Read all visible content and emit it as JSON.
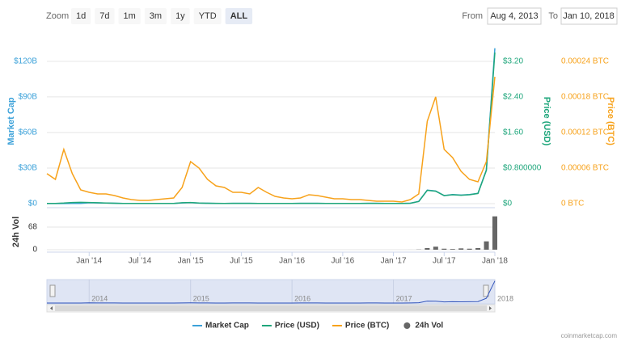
{
  "range_selector": {
    "label": "Zoom",
    "buttons": [
      "1d",
      "7d",
      "1m",
      "3m",
      "1y",
      "YTD",
      "ALL"
    ],
    "selected": 6,
    "from_label": "From",
    "from": "Aug 4, 2013",
    "to_label": "To",
    "to": "Jan 10, 2018"
  },
  "chart_data": {
    "type": "line",
    "x": [
      "2013-08",
      "2013-09",
      "2013-10",
      "2013-11",
      "2013-12",
      "2014-01",
      "2014-02",
      "2014-03",
      "2014-04",
      "2014-05",
      "2014-06",
      "2014-07",
      "2014-08",
      "2014-09",
      "2014-10",
      "2014-11",
      "2014-12",
      "2015-01",
      "2015-02",
      "2015-03",
      "2015-04",
      "2015-05",
      "2015-06",
      "2015-07",
      "2015-08",
      "2015-09",
      "2015-10",
      "2015-11",
      "2015-12",
      "2016-01",
      "2016-02",
      "2016-03",
      "2016-04",
      "2016-05",
      "2016-06",
      "2016-07",
      "2016-08",
      "2016-09",
      "2016-10",
      "2016-11",
      "2016-12",
      "2017-01",
      "2017-02",
      "2017-03",
      "2017-04",
      "2017-05",
      "2017-06",
      "2017-07",
      "2017-08",
      "2017-09",
      "2017-10",
      "2017-11",
      "2017-12",
      "2018-01"
    ],
    "xlim": [
      "2013-08",
      "2018-01"
    ],
    "xticks": [
      {
        "value": "2014-01",
        "label": "Jan '14"
      },
      {
        "value": "2014-07",
        "label": "Jul '14"
      },
      {
        "value": "2015-01",
        "label": "Jan '15"
      },
      {
        "value": "2015-07",
        "label": "Jul '15"
      },
      {
        "value": "2016-01",
        "label": "Jan '16"
      },
      {
        "value": "2016-07",
        "label": "Jul '16"
      },
      {
        "value": "2017-01",
        "label": "Jan '17"
      },
      {
        "value": "2017-07",
        "label": "Jul '17"
      },
      {
        "value": "2018-01",
        "label": "Jan '18"
      }
    ],
    "navigator_xticks": [
      {
        "value": "2014-01",
        "label": "2014"
      },
      {
        "value": "2015-01",
        "label": "2015"
      },
      {
        "value": "2016-01",
        "label": "2016"
      },
      {
        "value": "2017-01",
        "label": "2017"
      },
      {
        "value": "2018-01",
        "label": "2018"
      }
    ],
    "y_label": "Market Cap",
    "ylim": [
      0,
      139
    ],
    "yticks": [
      {
        "value": 0,
        "label": "$0"
      },
      {
        "value": 30,
        "label": "$30B"
      },
      {
        "value": 60,
        "label": "$60B"
      },
      {
        "value": 90,
        "label": "$90B"
      },
      {
        "value": 120,
        "label": "$120B"
      }
    ],
    "y2_label": "Price (USD)",
    "y2lim": [
      0,
      3.71
    ],
    "y2ticks": [
      {
        "value": 0,
        "label": "$0"
      },
      {
        "value": 0.8,
        "label": "$0.800000"
      },
      {
        "value": 1.6,
        "label": "$1.60"
      },
      {
        "value": 2.4,
        "label": "$2.40"
      },
      {
        "value": 3.2,
        "label": "$3.20"
      }
    ],
    "y3_label": "Price (BTC)",
    "y3lim": [
      0,
      0.000278
    ],
    "y3ticks": [
      {
        "value": 0,
        "label": "0 BTC"
      },
      {
        "value": 6e-05,
        "label": "0.00006 BTC"
      },
      {
        "value": 0.00012,
        "label": "0.00012 BTC"
      },
      {
        "value": 0.00018,
        "label": "0.00018 BTC"
      },
      {
        "value": 0.00024,
        "label": "0.00024 BTC"
      }
    ],
    "vol_label": "24h Vol",
    "vol_ylim": [
      0,
      114
    ],
    "vol_yticks": [
      0,
      68
    ],
    "grid": true,
    "series": [
      {
        "name": "Market Cap",
        "color": "#3ba1d9",
        "axis": "y",
        "values": [
          0.04,
          0.04,
          0.1,
          0.2,
          0.23,
          0.78,
          0.62,
          0.47,
          0.31,
          0.19,
          0.16,
          0.16,
          0.16,
          0.16,
          0.16,
          0.16,
          0.62,
          0.83,
          0.4,
          0.33,
          0.23,
          0.2,
          0.26,
          0.26,
          0.26,
          0.2,
          0.2,
          0.13,
          0.2,
          0.21,
          0.28,
          0.28,
          0.25,
          0.21,
          0.21,
          0.21,
          0.21,
          0.21,
          0.25,
          0.25,
          0.21,
          0.23,
          0.23,
          0.34,
          1.9,
          11.4,
          10.6,
          6.8,
          7.6,
          7.2,
          7.6,
          8.7,
          28.5,
          131
        ]
      },
      {
        "name": "Price (USD)",
        "color": "#1ea67b",
        "axis": "y2",
        "values": [
          0.005,
          0.005,
          0.012,
          0.025,
          0.03,
          0.025,
          0.02,
          0.015,
          0.01,
          0.006,
          0.005,
          0.005,
          0.005,
          0.005,
          0.005,
          0.005,
          0.02,
          0.025,
          0.012,
          0.01,
          0.007,
          0.006,
          0.008,
          0.008,
          0.008,
          0.006,
          0.006,
          0.004,
          0.006,
          0.006,
          0.008,
          0.008,
          0.007,
          0.006,
          0.006,
          0.006,
          0.006,
          0.006,
          0.007,
          0.007,
          0.006,
          0.006,
          0.006,
          0.009,
          0.05,
          0.3,
          0.28,
          0.18,
          0.2,
          0.19,
          0.2,
          0.23,
          0.75,
          3.4
        ]
      },
      {
        "name": "Price (BTC)",
        "color": "#f7a21b",
        "axis": "y3",
        "values": [
          5.05e-05,
          4.09e-05,
          9.14e-05,
          5.05e-05,
          2.32e-05,
          1.91e-05,
          1.64e-05,
          1.64e-05,
          1.36e-05,
          9.5e-06,
          6.8e-06,
          5.5e-06,
          5.5e-06,
          6.8e-06,
          8.2e-06,
          9.5e-06,
          2.73e-05,
          7.09e-05,
          6e-05,
          4.09e-05,
          3e-05,
          2.73e-05,
          1.91e-05,
          1.91e-05,
          1.64e-05,
          2.73e-05,
          1.91e-05,
          1.23e-05,
          9.5e-06,
          8.2e-06,
          9.5e-06,
          1.5e-05,
          1.36e-05,
          1.09e-05,
          8.2e-06,
          8.2e-06,
          6.8e-06,
          6.8e-06,
          5.5e-06,
          4.1e-06,
          4.1e-06,
          4.1e-06,
          2.7e-06,
          6.8e-06,
          1.64e-05,
          0.000139,
          0.00018,
          9.14e-05,
          7.77e-05,
          5.45e-05,
          4.09e-05,
          3.68e-05,
          7.09e-05,
          0.000214
        ]
      },
      {
        "name": "24h Vol",
        "color": "#666666",
        "axis": "vol",
        "type": "column",
        "values": [
          0.01,
          0.01,
          0.02,
          0.03,
          0.03,
          0.02,
          0.02,
          0.01,
          0.01,
          0.01,
          0.01,
          0.01,
          0.01,
          0.01,
          0.01,
          0.01,
          0.02,
          0.03,
          0.02,
          0.01,
          0.01,
          0.01,
          0.01,
          0.01,
          0.01,
          0.01,
          0.01,
          0.01,
          0.01,
          0.01,
          0.01,
          0.01,
          0.01,
          0.01,
          0.01,
          0.01,
          0.01,
          0.01,
          0.01,
          0.01,
          0.01,
          0.01,
          0.01,
          0.05,
          0.6,
          5,
          9,
          3,
          2,
          4,
          3,
          5,
          25,
          100
        ]
      }
    ]
  },
  "credit": "coinmarketcap.com"
}
